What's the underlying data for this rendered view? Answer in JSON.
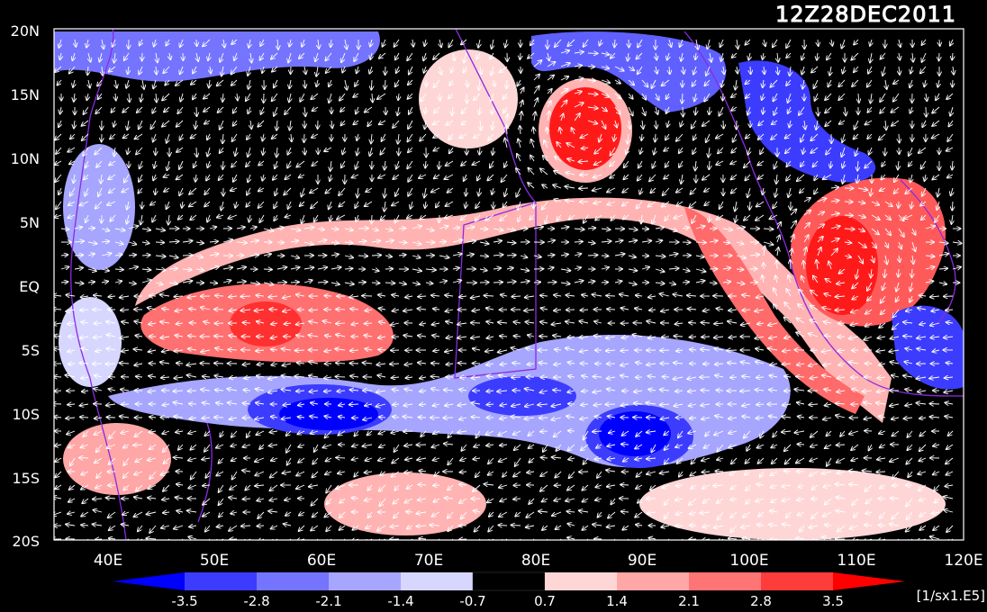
{
  "title": "12Z28DEC2011",
  "lat_labels": [
    "20N",
    "15N",
    "10N",
    "5N",
    "EQ",
    "5S",
    "10S",
    "15S",
    "20S"
  ],
  "lon_labels": [
    "40E",
    "50E",
    "60E",
    "70E",
    "80E",
    "90E",
    "100E",
    "110E",
    "120E"
  ],
  "colorbar": {
    "tick_labels": [
      "-3.5",
      "-2.8",
      "-2.1",
      "-1.4",
      "-0.7",
      "0.7",
      "1.4",
      "2.1",
      "2.8",
      "3.5"
    ],
    "unit_label": "[1/sx1.E5]",
    "colors": [
      "#0000ff",
      "#3c3cff",
      "#7474ff",
      "#a6a6ff",
      "#d6d6ff",
      "#000000",
      "#ffd6d6",
      "#ffa6a6",
      "#ff7474",
      "#ff3c3c",
      "#ff0000"
    ]
  },
  "map_colors": {
    "frame": "#ffffff",
    "coastline": "#8a2be2",
    "wind_vector": "#ffffff"
  },
  "legend_icons": [
    "left-arrow-triangle-icon",
    "right-arrow-triangle-icon"
  ]
}
